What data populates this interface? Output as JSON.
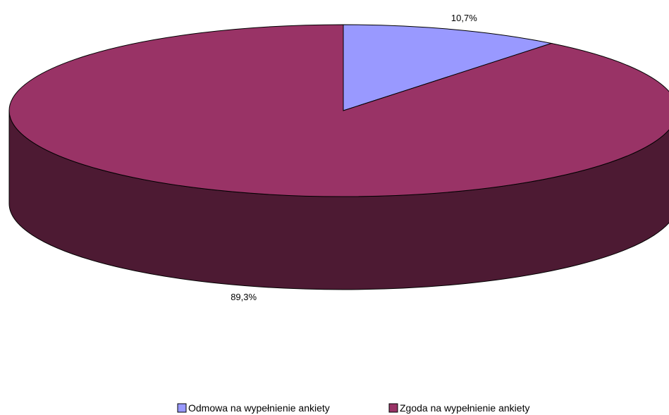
{
  "chart_data": {
    "type": "pie",
    "title": "",
    "style": "3d",
    "legend_position": "bottom",
    "slices": [
      {
        "label": "Odmowa na wypełnienie ankiety",
        "value": 10.7,
        "display": "10,7%",
        "color": "#9999ff"
      },
      {
        "label": "Zgoda na wypełnienie ankiety",
        "value": 89.3,
        "display": "89,3%",
        "color": "#993366"
      }
    ]
  }
}
